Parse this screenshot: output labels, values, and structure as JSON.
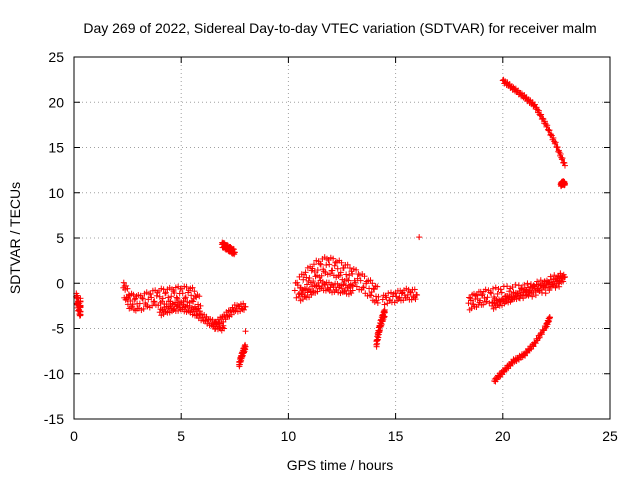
{
  "chart_data": {
    "type": "scatter",
    "title": "Day 269 of 2022, Sidereal Day-to-day VTEC variation (SDTVAR) for receiver malm",
    "xlabel": "GPS time / hours",
    "ylabel": "SDTVAR / TECUs",
    "xlim": [
      0,
      25
    ],
    "ylim": [
      -15,
      25
    ],
    "xticks": [
      "0",
      "5",
      "10",
      "15",
      "20",
      "25"
    ],
    "yticks": [
      "-15",
      "-10",
      "-5",
      "0",
      "5",
      "10",
      "15",
      "20",
      "25"
    ],
    "grid": true,
    "marker": "+",
    "colors": {
      "series": "#ff0000",
      "grid": "#a0a0a0",
      "axis": "#000000"
    },
    "series": [
      {
        "name": "SDTVAR",
        "segments": [
          {
            "x": [
              0.1,
              0.2,
              0.3,
              0.3
            ],
            "y": [
              -1.5,
              -2.5,
              -3.2,
              -2.0
            ],
            "spread": 0.6
          },
          {
            "x": [
              2.3,
              2.6,
              3.0,
              3.5,
              4.0,
              4.5,
              5.0,
              5.5,
              5.9
            ],
            "y": [
              -0.5,
              -2.0,
              -2.2,
              -1.8,
              -1.5,
              -1.4,
              -1.2,
              -1.3,
              -2.5
            ],
            "spread": 0.9
          },
          {
            "x": [
              4.0,
              4.5,
              5.0,
              5.5,
              6.0,
              6.5,
              7.0
            ],
            "y": [
              -3.2,
              -2.8,
              -2.6,
              -3.0,
              -3.8,
              -4.5,
              -5.0
            ],
            "spread": 0.4
          },
          {
            "x": [
              6.5,
              7.0,
              7.5,
              8.0
            ],
            "y": [
              -4.8,
              -3.8,
              -2.8,
              -2.6
            ],
            "spread": 0.4
          },
          {
            "x": [
              6.9,
              7.1,
              7.3,
              7.5
            ],
            "y": [
              4.3,
              4.0,
              3.7,
              3.4
            ],
            "spread": 0.3
          },
          {
            "x": [
              7.7,
              7.8,
              7.9,
              8.0
            ],
            "y": [
              -9.0,
              -8.2,
              -7.5,
              -7.0
            ],
            "spread": 0.3
          },
          {
            "x": [
              8.0
            ],
            "y": [
              -5.3
            ],
            "spread": 0
          },
          {
            "x": [
              10.3,
              10.8,
              11.3,
              11.8,
              12.3,
              12.8,
              13.3,
              13.8,
              14.2
            ],
            "y": [
              -0.8,
              0.5,
              1.5,
              2.0,
              1.6,
              1.0,
              0.3,
              -0.6,
              -1.5
            ],
            "spread": 1.0
          },
          {
            "x": [
              10.5,
              11.0,
              11.5,
              12.0,
              12.5,
              13.0
            ],
            "y": [
              -1.5,
              -1.0,
              -0.2,
              -0.5,
              -0.6,
              -0.8
            ],
            "spread": 0.5
          },
          {
            "x": [
              14.1,
              14.2,
              14.3,
              14.4,
              14.5
            ],
            "y": [
              -6.8,
              -5.5,
              -4.5,
              -3.8,
              -3.2
            ],
            "spread": 0.4
          },
          {
            "x": [
              14.4,
              15.0,
              15.5,
              16.0
            ],
            "y": [
              -1.8,
              -1.5,
              -1.2,
              -1.3
            ],
            "spread": 0.6
          },
          {
            "x": [
              16.1
            ],
            "y": [
              5.1
            ],
            "spread": 0
          },
          {
            "x": [
              18.4,
              18.8,
              19.2,
              19.8,
              20.5,
              21.2,
              22.0,
              22.8
            ],
            "y": [
              -2.2,
              -1.8,
              -1.5,
              -1.2,
              -1.0,
              -0.8,
              -0.3,
              0.6
            ],
            "spread": 0.8
          },
          {
            "x": [
              19.5,
              20.0,
              20.5,
              21.0,
              21.5,
              22.0,
              22.5,
              22.9
            ],
            "y": [
              -2.5,
              -2.0,
              -1.5,
              -1.0,
              -0.6,
              -0.2,
              0.2,
              0.7
            ],
            "spread": 0.4
          },
          {
            "x": [
              19.6,
              20.0,
              20.5,
              21.0,
              21.5,
              22.0,
              22.2
            ],
            "y": [
              -10.8,
              -9.8,
              -8.6,
              -7.9,
              -6.6,
              -4.8,
              -3.8
            ],
            "spread": 0.2
          },
          {
            "x": [
              20.0,
              20.5,
              21.0,
              21.5,
              22.0,
              22.5,
              22.9
            ],
            "y": [
              22.4,
              21.5,
              20.6,
              19.6,
              17.6,
              15.2,
              13.0
            ],
            "spread": 0.2
          },
          {
            "x": [
              22.7,
              22.8,
              22.9
            ],
            "y": [
              10.9,
              11.1,
              11.0
            ],
            "spread": 0.2
          }
        ]
      }
    ]
  }
}
